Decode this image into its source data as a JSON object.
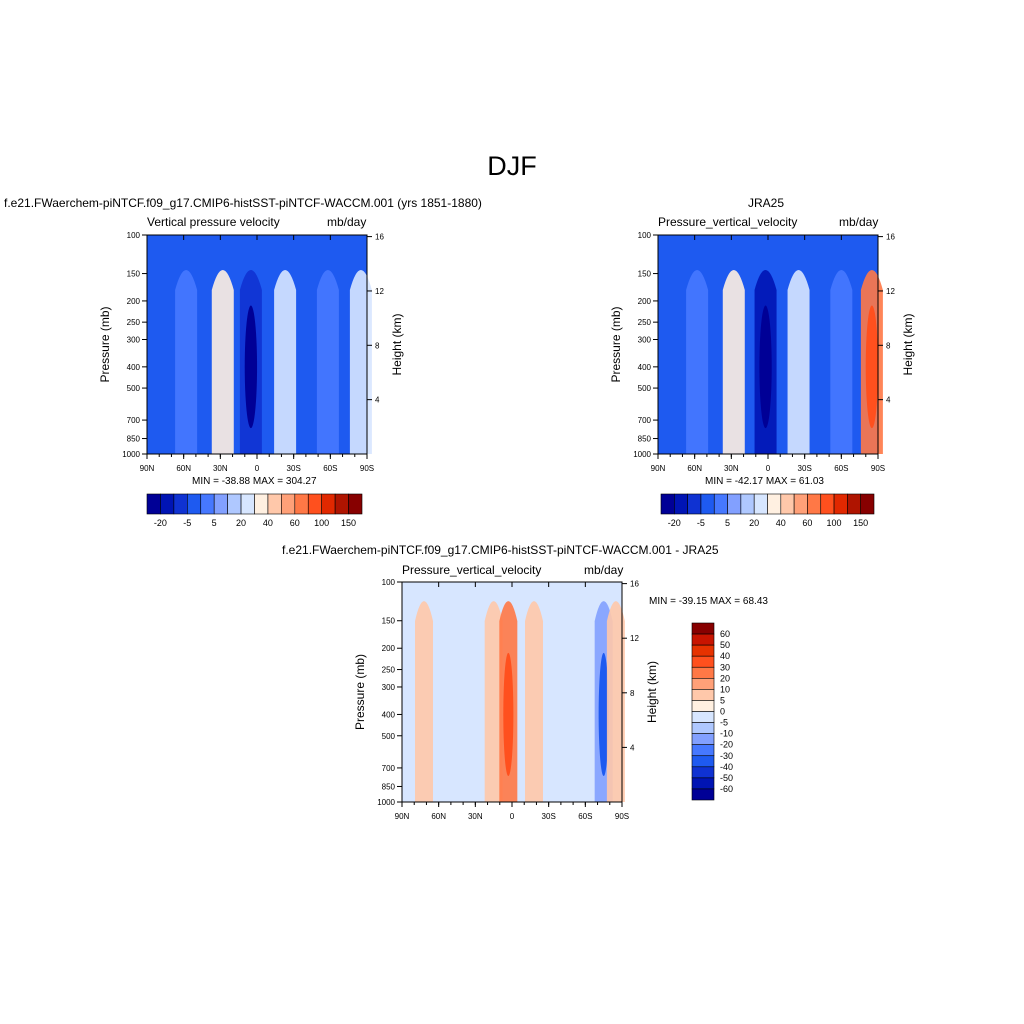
{
  "figure": {
    "title": "DJF",
    "panels": [
      {
        "id": "model",
        "title": "f.e21.FWaerchem-piNTCF.f09_g17.CMIP6-histSST-piNTCF-WACCM.001 (yrs 1851-1880)",
        "left_label": "Vertical pressure velocity",
        "right_label": "mb/day",
        "minmax": "MIN = -38.88  MAX = 304.27",
        "ylabel_left": "Pressure (mb)",
        "ylabel_right": "Height (km)"
      },
      {
        "id": "obs",
        "title": "JRA25",
        "left_label": "Pressure_vertical_velocity",
        "right_label": "mb/day",
        "minmax": "MIN = -42.17  MAX =  61.03",
        "ylabel_left": "Pressure (mb)",
        "ylabel_right": "Height (km)"
      },
      {
        "id": "diff",
        "title": "f.e21.FWaerchem-piNTCF.f09_g17.CMIP6-histSST-piNTCF-WACCM.001 - JRA25",
        "left_label": "Pressure_vertical_velocity",
        "right_label": "mb/day",
        "minmax": "MIN = -39.15  MAX =  68.43",
        "ylabel_left": "Pressure (mb)",
        "ylabel_right": "Height (km)"
      }
    ]
  },
  "chart_data": [
    {
      "type": "heatmap",
      "panel": "model",
      "title": "Vertical pressure velocity",
      "units": "mb/day",
      "x_ticks": [
        "90N",
        "60N",
        "30N",
        "0",
        "30S",
        "60S",
        "90S"
      ],
      "x_tick_values": [
        90,
        60,
        30,
        0,
        -30,
        -60,
        -90
      ],
      "xlim": [
        90,
        -90
      ],
      "y_ticks": [
        "100",
        "150",
        "200",
        "250",
        "300",
        "400",
        "500",
        "700",
        "850",
        "1000"
      ],
      "y_tick_values": [
        100,
        150,
        200,
        250,
        300,
        400,
        500,
        700,
        850,
        1000
      ],
      "ylim": [
        100,
        1000
      ],
      "y_scale": "log",
      "y2_ticks": [
        "16",
        "12",
        "8",
        "4"
      ],
      "y2_tick_values": [
        16,
        12,
        8,
        4
      ],
      "min": -38.88,
      "max": 304.27,
      "features": [
        {
          "lat": 58,
          "value": -10
        },
        {
          "lat": 28,
          "value": 10
        },
        {
          "lat": 5,
          "value": -30
        },
        {
          "lat": -23,
          "value": 5
        },
        {
          "lat": -58,
          "value": -10
        },
        {
          "lat": -85,
          "value": 5
        }
      ],
      "colorbar": {
        "labels": [
          "-20",
          "-5",
          "5",
          "20",
          "40",
          "60",
          "100",
          "150"
        ],
        "colors": [
          "#000096",
          "#0014b4",
          "#0f32d2",
          "#1e5af0",
          "#4678ff",
          "#82a0ff",
          "#afc8ff",
          "#d7e6ff",
          "#fff0e1",
          "#ffc8aa",
          "#ffa078",
          "#ff7846",
          "#ff501e",
          "#e12800",
          "#af1400",
          "#870000"
        ]
      }
    },
    {
      "type": "heatmap",
      "panel": "obs",
      "title": "Pressure_vertical_velocity",
      "units": "mb/day",
      "x_ticks": [
        "90N",
        "60N",
        "30N",
        "0",
        "30S",
        "60S",
        "90S"
      ],
      "x_tick_values": [
        90,
        60,
        30,
        0,
        -30,
        -60,
        -90
      ],
      "xlim": [
        90,
        -90
      ],
      "y_ticks": [
        "100",
        "150",
        "200",
        "250",
        "300",
        "400",
        "500",
        "700",
        "850",
        "1000"
      ],
      "y_tick_values": [
        100,
        150,
        200,
        250,
        300,
        400,
        500,
        700,
        850,
        1000
      ],
      "ylim": [
        100,
        1000
      ],
      "y_scale": "log",
      "y2_ticks": [
        "16",
        "12",
        "8",
        "4"
      ],
      "y2_tick_values": [
        16,
        12,
        8,
        4
      ],
      "min": -42.17,
      "max": 61.03,
      "features": [
        {
          "lat": 58,
          "value": -10
        },
        {
          "lat": 28,
          "value": 10
        },
        {
          "lat": 2,
          "value": -35
        },
        {
          "lat": -25,
          "value": 5
        },
        {
          "lat": -60,
          "value": -10
        },
        {
          "lat": -85,
          "value": 40
        }
      ],
      "colorbar": {
        "labels": [
          "-20",
          "-5",
          "5",
          "20",
          "40",
          "60",
          "100",
          "150"
        ],
        "colors": [
          "#000096",
          "#0014b4",
          "#0f32d2",
          "#1e5af0",
          "#4678ff",
          "#82a0ff",
          "#afc8ff",
          "#d7e6ff",
          "#fff0e1",
          "#ffc8aa",
          "#ffa078",
          "#ff7846",
          "#ff501e",
          "#e12800",
          "#af1400",
          "#870000"
        ]
      }
    },
    {
      "type": "heatmap",
      "panel": "diff",
      "title": "Pressure_vertical_velocity",
      "units": "mb/day",
      "x_ticks": [
        "90N",
        "60N",
        "30N",
        "0",
        "30S",
        "60S",
        "90S"
      ],
      "x_tick_values": [
        90,
        60,
        30,
        0,
        -30,
        -60,
        -90
      ],
      "xlim": [
        90,
        -90
      ],
      "y_ticks": [
        "100",
        "150",
        "200",
        "250",
        "300",
        "400",
        "500",
        "700",
        "850",
        "1000"
      ],
      "y_tick_values": [
        100,
        150,
        200,
        250,
        300,
        400,
        500,
        700,
        850,
        1000
      ],
      "ylim": [
        100,
        1000
      ],
      "y_scale": "log",
      "y2_ticks": [
        "16",
        "12",
        "8",
        "4"
      ],
      "y2_tick_values": [
        16,
        12,
        8,
        4
      ],
      "min": -39.15,
      "max": 68.43,
      "features": [
        {
          "lat": 72,
          "value": 5
        },
        {
          "lat": 15,
          "value": 5
        },
        {
          "lat": 3,
          "value": 20
        },
        {
          "lat": -18,
          "value": 5
        },
        {
          "lat": -75,
          "value": -20
        },
        {
          "lat": -85,
          "value": 5
        }
      ],
      "colorbar": {
        "labels": [
          "60",
          "50",
          "40",
          "30",
          "20",
          "10",
          "5",
          "0",
          "-5",
          "-10",
          "-20",
          "-30",
          "-40",
          "-50",
          "-60"
        ],
        "colors": [
          "#870000",
          "#c81400",
          "#e63200",
          "#ff501e",
          "#ff7846",
          "#ffa078",
          "#ffc8aa",
          "#fff0e1",
          "#d7e6ff",
          "#afc8ff",
          "#82a0ff",
          "#4678ff",
          "#1e5af0",
          "#0f32d2",
          "#0014b4",
          "#000096"
        ]
      }
    }
  ]
}
